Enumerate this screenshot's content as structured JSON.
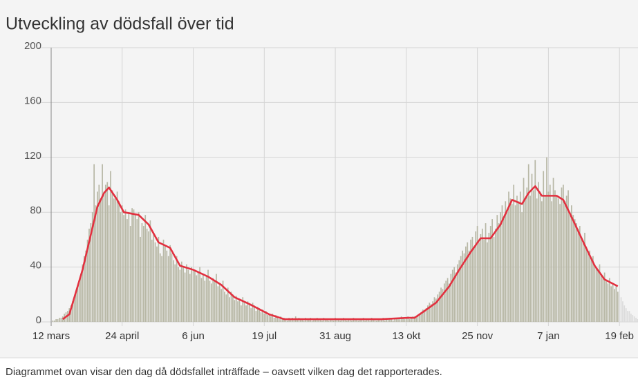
{
  "chart_data": {
    "type": "bar",
    "title": "Utveckling av dödsfall över tid",
    "note": "Diagrammet ovan visar den dag då dödsfallet inträffade – oavsett vilken dag det rapporterades.",
    "xlim": [
      -8,
      356
    ],
    "xticks": [
      {
        "value": 0,
        "label": "12 mars"
      },
      {
        "value": 43,
        "label": "24 april"
      },
      {
        "value": 86,
        "label": "6 jun"
      },
      {
        "value": 129,
        "label": "19 jul"
      },
      {
        "value": 172,
        "label": "31 aug"
      },
      {
        "value": 215,
        "label": "13 okt"
      },
      {
        "value": 258,
        "label": "25 nov"
      },
      {
        "value": 301,
        "label": "7 jan"
      },
      {
        "value": 344,
        "label": "19 feb"
      }
    ],
    "ylim": [
      0,
      200
    ],
    "yticks": [
      0,
      40,
      80,
      120,
      160,
      200
    ],
    "grid": true,
    "series": [
      {
        "type": "bar",
        "color": "#b8b8a6",
        "values": [
          0,
          1,
          1,
          2,
          2,
          3,
          3,
          4,
          6,
          7,
          8,
          10,
          12,
          15,
          18,
          22,
          25,
          30,
          35,
          42,
          48,
          52,
          60,
          68,
          72,
          80,
          115,
          85,
          95,
          100,
          90,
          115,
          95,
          100,
          102,
          85,
          110,
          96,
          90,
          92,
          95,
          88,
          80,
          85,
          78,
          82,
          75,
          80,
          70,
          83,
          82,
          78,
          75,
          80,
          62,
          72,
          70,
          78,
          68,
          66,
          74,
          60,
          65,
          58,
          55,
          62,
          50,
          48,
          60,
          55,
          52,
          48,
          56,
          50,
          45,
          42,
          48,
          40,
          38,
          44,
          40,
          36,
          42,
          38,
          35,
          40,
          37,
          38,
          34,
          36,
          40,
          32,
          35,
          30,
          34,
          38,
          30,
          28,
          32,
          30,
          35,
          26,
          28,
          24,
          30,
          22,
          20,
          25,
          18,
          22,
          20,
          16,
          19,
          15,
          17,
          12,
          18,
          14,
          12,
          15,
          13,
          10,
          14,
          12,
          8,
          11,
          10,
          7,
          9,
          6,
          8,
          5,
          6,
          4,
          6,
          3,
          5,
          3,
          2,
          4,
          2,
          3,
          2,
          1,
          3,
          2,
          3,
          2,
          4,
          2,
          3,
          2,
          2,
          1,
          3,
          2,
          2,
          3,
          1,
          2,
          2,
          3,
          2,
          2,
          1,
          3,
          2,
          2,
          1,
          2,
          2,
          1,
          3,
          2,
          2,
          1,
          2,
          3,
          2,
          1,
          2,
          2,
          1,
          3,
          2,
          2,
          1,
          2,
          2,
          3,
          1,
          2,
          2,
          1,
          3,
          2,
          2,
          1,
          2,
          2,
          2,
          3,
          1,
          2,
          2,
          3,
          2,
          1,
          3,
          2,
          3,
          2,
          4,
          3,
          2,
          3,
          4,
          2,
          3,
          4,
          4,
          3,
          5,
          6,
          7,
          9,
          8,
          10,
          12,
          14,
          13,
          15,
          18,
          17,
          20,
          22,
          25,
          24,
          28,
          30,
          32,
          28,
          35,
          38,
          40,
          36,
          42,
          45,
          48,
          52,
          50,
          55,
          58,
          52,
          60,
          62,
          55,
          66,
          70,
          58,
          64,
          68,
          60,
          72,
          58,
          65,
          70,
          75,
          62,
          68,
          78,
          72,
          80,
          85,
          75,
          88,
          82,
          95,
          90,
          86,
          100,
          85,
          92,
          88,
          95,
          80,
          105,
          90,
          98,
          115,
          92,
          108,
          96,
          118,
          90,
          102,
          95,
          88,
          110,
          92,
          120,
          95,
          100,
          88,
          105,
          96,
          92,
          90,
          86,
          98,
          100,
          88,
          92,
          96,
          80,
          85,
          78,
          75,
          72,
          68,
          70,
          62,
          58,
          65,
          55,
          50,
          52,
          45,
          48,
          42,
          40,
          38,
          42,
          35,
          32,
          36,
          30,
          28,
          32,
          26,
          28,
          24,
          26,
          22
        ]
      },
      {
        "type": "bar",
        "color": "#dcdcdc",
        "x": [
          344,
          345,
          346,
          347,
          348,
          349,
          350,
          351,
          352,
          353,
          354,
          355
        ],
        "values": [
          20,
          18,
          15,
          12,
          10,
          8,
          8,
          6,
          5,
          4,
          3,
          2
        ]
      },
      {
        "type": "line",
        "color": "#e2303f",
        "x": [
          7,
          11,
          19,
          28,
          32,
          35,
          40,
          44,
          53,
          59,
          65,
          72,
          78,
          86,
          95,
          103,
          111,
          120,
          132,
          141,
          160,
          180,
          200,
          216,
          220,
          226,
          233,
          241,
          247,
          254,
          260,
          266,
          272,
          279,
          285,
          289,
          293,
          297,
          306,
          310,
          316,
          323,
          329,
          335,
          343
        ],
        "values": [
          2,
          5.5,
          38,
          84,
          94,
          98,
          89,
          80,
          78,
          71,
          58,
          54,
          41,
          38,
          33,
          27,
          18,
          13,
          5.5,
          2,
          2,
          2,
          2,
          3,
          3,
          8,
          14,
          26,
          38,
          51,
          61,
          61,
          71,
          89,
          86,
          94,
          99,
          92,
          92,
          89,
          74,
          56,
          41,
          31,
          26
        ]
      }
    ]
  }
}
